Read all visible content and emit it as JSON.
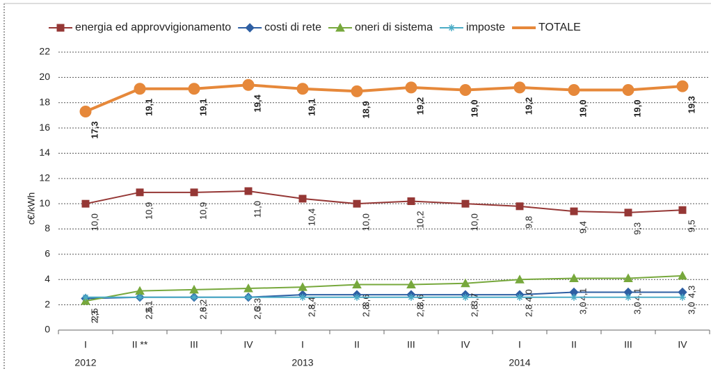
{
  "chart_data": {
    "type": "line",
    "y_label": "c€/kWh",
    "categories": [
      "I",
      "II **",
      "III",
      "IV",
      "I",
      "II",
      "III",
      "IV",
      "I",
      "II",
      "III",
      "IV"
    ],
    "years": [
      "2012",
      null,
      null,
      null,
      "2013",
      null,
      null,
      null,
      "2014",
      null,
      null,
      null
    ],
    "ylim": [
      0,
      22
    ],
    "yticks": [
      0,
      2,
      4,
      6,
      8,
      10,
      12,
      14,
      16,
      18,
      20,
      22
    ],
    "grid": true,
    "legend": "top",
    "series": [
      {
        "name": "energia ed approvvigionamento",
        "color": "#953735",
        "marker": "square",
        "values": [
          10.0,
          10.9,
          10.9,
          11.0,
          10.4,
          10.0,
          10.2,
          10.0,
          9.8,
          9.4,
          9.3,
          9.5
        ],
        "value_labels": [
          "10,0",
          "10,9",
          "10,9",
          "11,0",
          "10,4",
          "10,0",
          "10,2",
          "10,0",
          "9,8",
          "9,4",
          "9,3",
          "9,5"
        ]
      },
      {
        "name": "costi di rete",
        "color": "#2e5fa3",
        "marker": "diamond",
        "values": [
          2.5,
          2.6,
          2.6,
          2.6,
          2.8,
          2.8,
          2.8,
          2.8,
          2.8,
          3.0,
          3.0,
          3.0
        ],
        "value_labels": [
          "2,5",
          "2,6",
          "2,6",
          "2,6",
          "2,8",
          "2,8",
          "2,8",
          "2,8",
          "2,8",
          "3,0",
          "3,0",
          "3,0"
        ]
      },
      {
        "name": "oneri di sistema",
        "color": "#77a83c",
        "marker": "triangle",
        "values": [
          2.3,
          3.1,
          3.2,
          3.3,
          3.4,
          3.6,
          3.6,
          3.7,
          4.0,
          4.1,
          4.1,
          4.3
        ],
        "value_labels": [
          "2,3",
          "3,1",
          "3,2",
          "3,3",
          "3,4",
          "3,6",
          "3,6",
          "3,7",
          "4,0",
          "4,1",
          "4,1",
          "4,3"
        ]
      },
      {
        "name": "imposte",
        "color": "#4bacc6",
        "marker": "asterisk",
        "values": [
          2.6,
          2.6,
          2.6,
          2.6,
          2.6,
          2.6,
          2.6,
          2.6,
          2.6,
          2.6,
          2.6,
          2.6
        ]
      },
      {
        "name": "TOTALE",
        "color": "#e6883a",
        "marker": "circle",
        "width": 4,
        "values": [
          17.3,
          19.1,
          19.1,
          19.4,
          19.1,
          18.9,
          19.2,
          19.0,
          19.2,
          19.0,
          19.0,
          19.3
        ],
        "value_labels": [
          "17,3",
          "19,1",
          "19,1",
          "19,4",
          "19,1",
          "18,9",
          "19,2",
          "19,0",
          "19,2",
          "19,0",
          "19,0",
          "19,3"
        ]
      }
    ]
  }
}
